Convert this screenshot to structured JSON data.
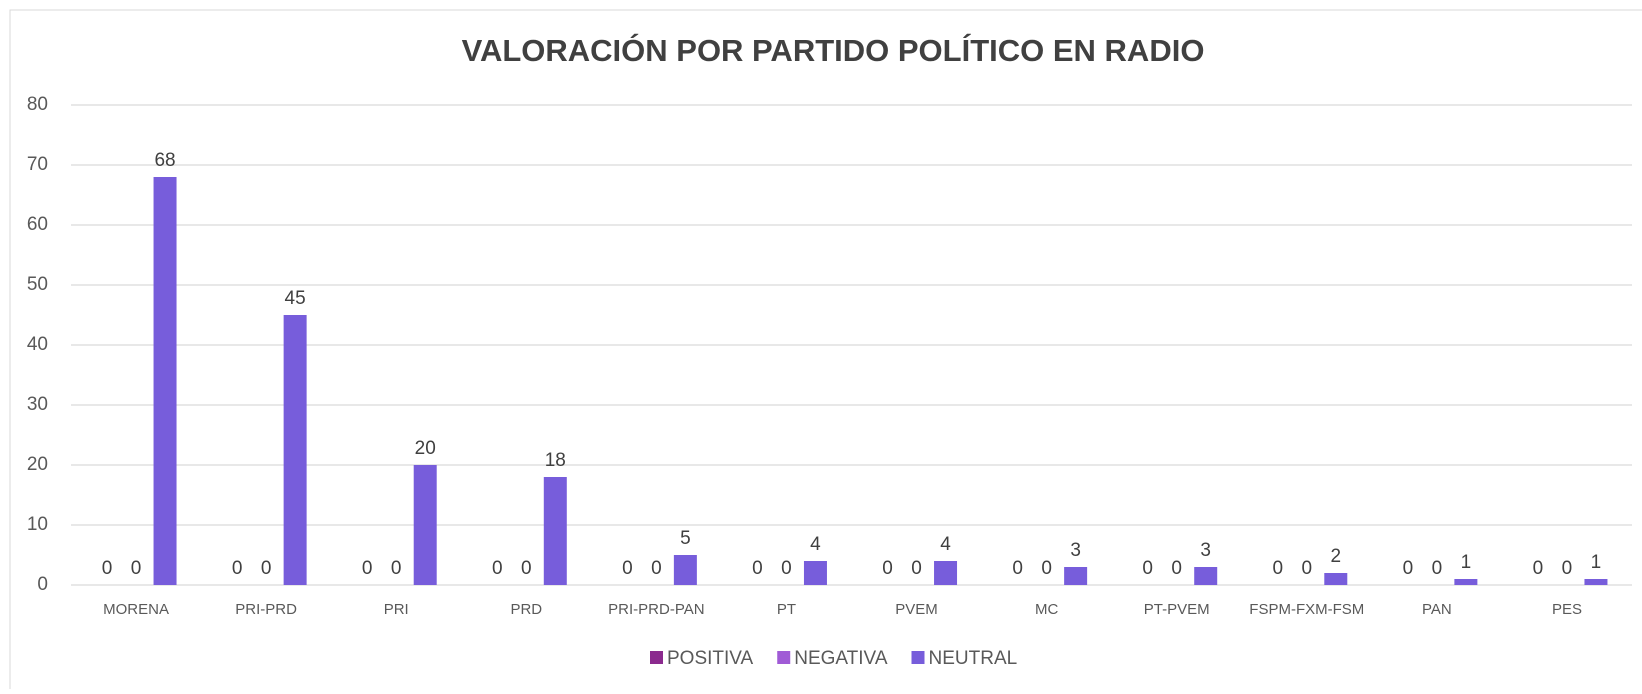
{
  "chart_data": {
    "type": "bar",
    "title": "VALORACIÓN POR PARTIDO POLÍTICO EN RADIO",
    "categories": [
      "MORENA",
      "PRI-PRD",
      "PRI",
      "PRD",
      "PRI-PRD-PAN",
      "PT",
      "PVEM",
      "MC",
      "PT-PVEM",
      "FSPM-FXM-FSM",
      "PAN",
      "PES"
    ],
    "series": [
      {
        "name": "POSITIVA",
        "color": "#8b2a8e",
        "values": [
          0,
          0,
          0,
          0,
          0,
          0,
          0,
          0,
          0,
          0,
          0,
          0
        ]
      },
      {
        "name": "NEGATIVA",
        "color": "#a05bd6",
        "values": [
          0,
          0,
          0,
          0,
          0,
          0,
          0,
          0,
          0,
          0,
          0,
          0
        ]
      },
      {
        "name": "NEUTRAL",
        "color": "#775ddb",
        "values": [
          68,
          45,
          20,
          18,
          5,
          4,
          4,
          3,
          3,
          2,
          1,
          1
        ]
      }
    ],
    "ylim": [
      0,
      80
    ],
    "yticks": [
      0,
      10,
      20,
      30,
      40,
      50,
      60,
      70,
      80
    ],
    "grid": true,
    "legend": "bottom"
  }
}
